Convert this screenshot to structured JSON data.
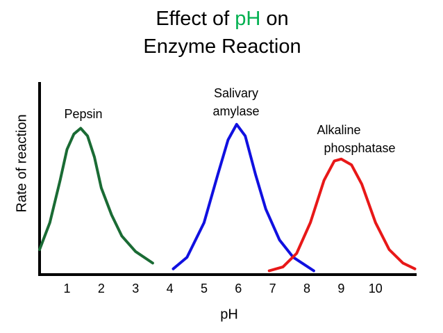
{
  "chart_data": {
    "type": "line",
    "title": {
      "lines": [
        [
          {
            "text": "Effect of "
          },
          {
            "text": "pH",
            "color": "#00b050"
          },
          {
            "text": " on"
          }
        ],
        [
          {
            "text": "Enzyme Reaction"
          }
        ]
      ]
    },
    "x_label": "pH",
    "y_label": "Rate of reaction",
    "xlim": [
      0.2,
      11.2
    ],
    "ylim": [
      0,
      100
    ],
    "xticks": [
      1,
      2,
      3,
      4,
      5,
      6,
      7,
      8,
      9,
      10
    ],
    "series": [
      {
        "label": [
          "Pepsin"
        ],
        "color": "#1a6b34",
        "x": [
          0.2,
          0.5,
          0.8,
          1.0,
          1.2,
          1.4,
          1.6,
          1.8,
          2.0,
          2.3,
          2.6,
          3.0,
          3.5
        ],
        "values": [
          13,
          27,
          49,
          65,
          73,
          76,
          72,
          61,
          45,
          31,
          20,
          12,
          6
        ]
      },
      {
        "label": [
          "Salivary",
          "amylase"
        ],
        "color": "#1010e0",
        "x": [
          4.1,
          4.5,
          5.0,
          5.4,
          5.7,
          5.95,
          6.2,
          6.5,
          6.8,
          7.2,
          7.6,
          8.2
        ],
        "values": [
          3,
          9,
          27,
          52,
          70,
          78,
          72,
          52,
          34,
          18,
          9,
          2
        ]
      },
      {
        "label": [
          "Alkaline",
          "phosphatase"
        ],
        "color": "#e81818",
        "x": [
          6.9,
          7.3,
          7.7,
          8.1,
          8.5,
          8.8,
          9.0,
          9.3,
          9.6,
          10.0,
          10.4,
          10.8,
          11.15
        ],
        "values": [
          2,
          4,
          11,
          27,
          49,
          59,
          60,
          57,
          47,
          27,
          13,
          6,
          3
        ]
      }
    ]
  }
}
